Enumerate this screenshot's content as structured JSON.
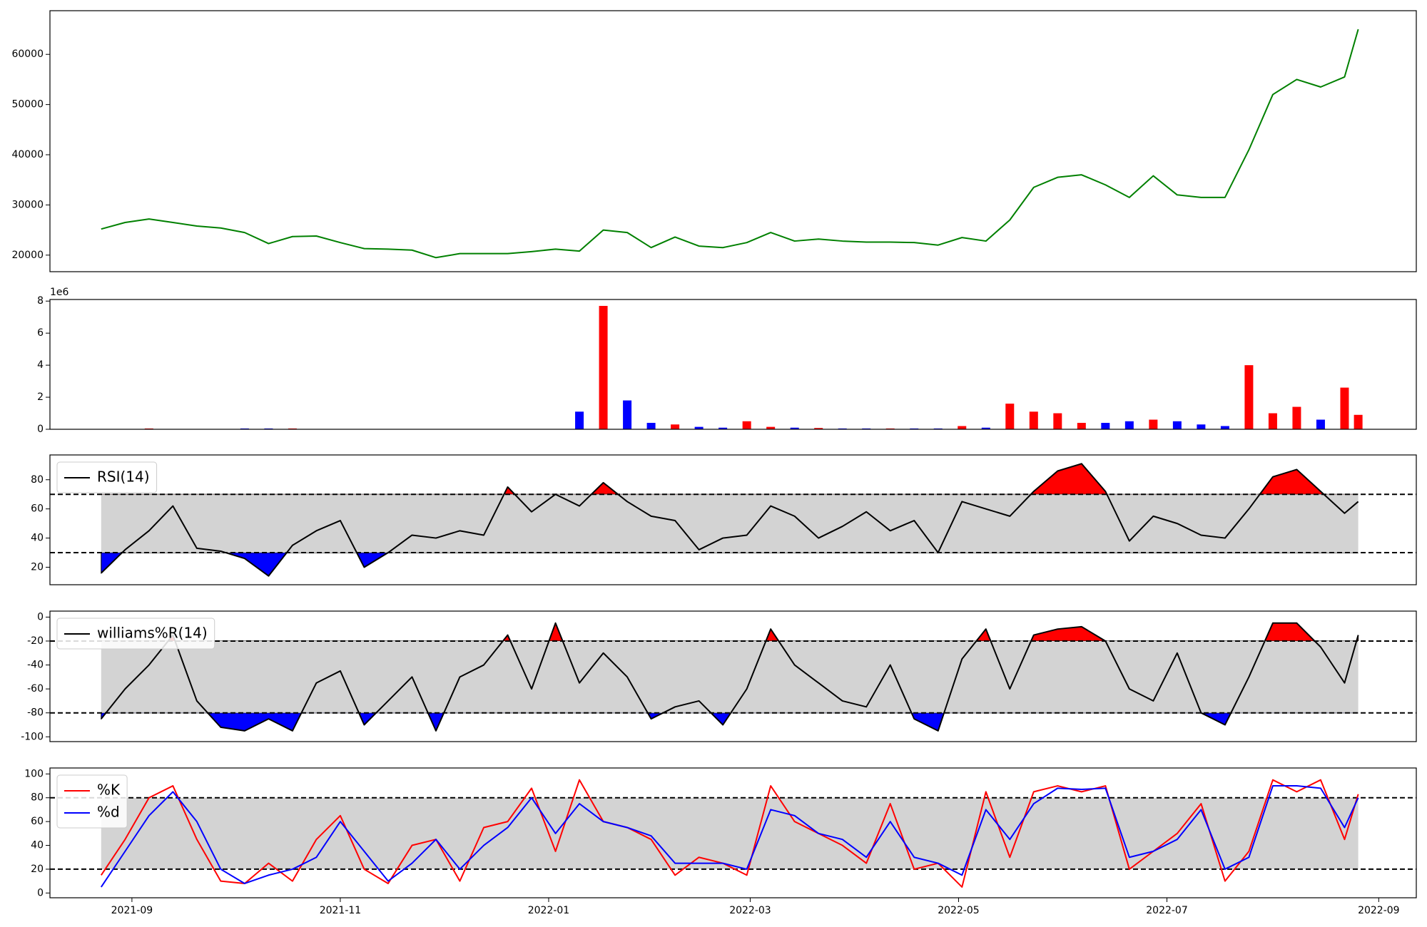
{
  "chart_data": [
    {
      "type": "line",
      "xlim": [
        "2021-08-08",
        "2022-09-12"
      ],
      "ylim": [
        16700,
        68700
      ],
      "yticks": [
        20000,
        30000,
        40000,
        50000,
        60000
      ],
      "x": [
        "2021-08-23",
        "2021-08-30",
        "2021-09-06",
        "2021-09-13",
        "2021-09-20",
        "2021-09-27",
        "2021-10-04",
        "2021-10-11",
        "2021-10-18",
        "2021-10-25",
        "2021-11-01",
        "2021-11-08",
        "2021-11-15",
        "2021-11-22",
        "2021-11-29",
        "2021-12-06",
        "2021-12-13",
        "2021-12-20",
        "2021-12-27",
        "2022-01-03",
        "2022-01-10",
        "2022-01-17",
        "2022-01-24",
        "2022-01-31",
        "2022-02-07",
        "2022-02-14",
        "2022-02-21",
        "2022-02-28",
        "2022-03-07",
        "2022-03-14",
        "2022-03-21",
        "2022-03-28",
        "2022-04-04",
        "2022-04-11",
        "2022-04-18",
        "2022-04-25",
        "2022-05-02",
        "2022-05-09",
        "2022-05-16",
        "2022-05-23",
        "2022-05-30",
        "2022-06-06",
        "2022-06-13",
        "2022-06-20",
        "2022-06-27",
        "2022-07-04",
        "2022-07-11",
        "2022-07-18",
        "2022-07-25",
        "2022-08-01",
        "2022-08-08",
        "2022-08-15",
        "2022-08-22",
        "2022-08-26"
      ],
      "series": [
        {
          "color": "#008000",
          "values": [
            25200,
            26500,
            27200,
            26500,
            25800,
            25400,
            24500,
            22300,
            23700,
            23800,
            22500,
            21300,
            21200,
            21000,
            19500,
            20300,
            20300,
            20300,
            20700,
            21200,
            20800,
            25000,
            24500,
            21500,
            23600,
            21800,
            21500,
            22500,
            24500,
            22800,
            23200,
            22800,
            22600,
            22600,
            22500,
            22000,
            23500,
            22800,
            27000,
            33500,
            35500,
            36000,
            34000,
            31500,
            35800,
            32000,
            31500,
            31500,
            41000,
            52000,
            55000,
            53500,
            55500,
            65000
          ]
        }
      ]
    },
    {
      "type": "bar",
      "xlim": [
        "2021-08-08",
        "2022-09-12"
      ],
      "ylim": [
        0,
        8.1
      ],
      "yticks": [
        0,
        2,
        4,
        6,
        8
      ],
      "offset_label": "1e6",
      "x": [
        "2021-08-23",
        "2021-08-30",
        "2021-09-06",
        "2021-09-13",
        "2021-09-20",
        "2021-09-27",
        "2021-10-04",
        "2021-10-11",
        "2021-10-18",
        "2021-10-25",
        "2021-11-01",
        "2021-11-08",
        "2021-11-15",
        "2021-11-22",
        "2021-11-29",
        "2021-12-06",
        "2021-12-13",
        "2021-12-20",
        "2021-12-27",
        "2022-01-03",
        "2022-01-10",
        "2022-01-17",
        "2022-01-24",
        "2022-01-31",
        "2022-02-07",
        "2022-02-14",
        "2022-02-21",
        "2022-02-28",
        "2022-03-07",
        "2022-03-14",
        "2022-03-21",
        "2022-03-28",
        "2022-04-04",
        "2022-04-11",
        "2022-04-18",
        "2022-04-25",
        "2022-05-02",
        "2022-05-09",
        "2022-05-16",
        "2022-05-23",
        "2022-05-30",
        "2022-06-06",
        "2022-06-13",
        "2022-06-20",
        "2022-06-27",
        "2022-07-04",
        "2022-07-11",
        "2022-07-18",
        "2022-07-25",
        "2022-08-01",
        "2022-08-08",
        "2022-08-15",
        "2022-08-22",
        "2022-08-26"
      ],
      "values": [
        0.02,
        0.02,
        0.05,
        0.02,
        0.02,
        0.02,
        0.05,
        0.05,
        0.05,
        0.02,
        0.02,
        0.02,
        0.02,
        0.02,
        0.02,
        0.02,
        0.02,
        0.02,
        0.02,
        0.02,
        1.1,
        7.7,
        1.8,
        0.4,
        0.3,
        0.15,
        0.1,
        0.5,
        0.15,
        0.1,
        0.08,
        0.05,
        0.05,
        0.05,
        0.05,
        0.05,
        0.2,
        0.1,
        1.6,
        1.1,
        1.0,
        0.4,
        0.4,
        0.5,
        0.6,
        0.5,
        0.3,
        0.2,
        4.0,
        1.0,
        1.4,
        0.6,
        2.6,
        0.9
      ],
      "colors": [
        "#ff0000",
        "#ff0000",
        "#ff0000",
        "#0000ff",
        "#0000ff",
        "#0000ff",
        "#0000ff",
        "#0000ff",
        "#ff0000",
        "#ff0000",
        "#0000ff",
        "#0000ff",
        "#0000ff",
        "#0000ff",
        "#0000ff",
        "#ff0000",
        "#ff0000",
        "#ff0000",
        "#ff0000",
        "#ff0000",
        "#0000ff",
        "#ff0000",
        "#0000ff",
        "#0000ff",
        "#ff0000",
        "#0000ff",
        "#0000ff",
        "#ff0000",
        "#ff0000",
        "#0000ff",
        "#ff0000",
        "#0000ff",
        "#0000ff",
        "#ff0000",
        "#0000ff",
        "#0000ff",
        "#ff0000",
        "#0000ff",
        "#ff0000",
        "#ff0000",
        "#ff0000",
        "#ff0000",
        "#0000ff",
        "#0000ff",
        "#ff0000",
        "#0000ff",
        "#0000ff",
        "#0000ff",
        "#ff0000",
        "#ff0000",
        "#ff0000",
        "#0000ff",
        "#ff0000",
        "#ff0000"
      ]
    },
    {
      "type": "line",
      "xlim": [
        "2021-08-08",
        "2022-09-12"
      ],
      "ylim": [
        8,
        97
      ],
      "yticks": [
        20,
        40,
        60,
        80
      ],
      "thresholds": [
        30,
        70
      ],
      "band_color": "#d3d3d3",
      "fill_colors": [
        "#0000ff",
        "#ff0000"
      ],
      "legend": "upper left",
      "x": [
        "2021-08-23",
        "2021-08-30",
        "2021-09-06",
        "2021-09-13",
        "2021-09-20",
        "2021-09-27",
        "2021-10-04",
        "2021-10-11",
        "2021-10-18",
        "2021-10-25",
        "2021-11-01",
        "2021-11-08",
        "2021-11-15",
        "2021-11-22",
        "2021-11-29",
        "2021-12-06",
        "2021-12-13",
        "2021-12-20",
        "2021-12-27",
        "2022-01-03",
        "2022-01-10",
        "2022-01-17",
        "2022-01-24",
        "2022-01-31",
        "2022-02-07",
        "2022-02-14",
        "2022-02-21",
        "2022-02-28",
        "2022-03-07",
        "2022-03-14",
        "2022-03-21",
        "2022-03-28",
        "2022-04-04",
        "2022-04-11",
        "2022-04-18",
        "2022-04-25",
        "2022-05-02",
        "2022-05-09",
        "2022-05-16",
        "2022-05-23",
        "2022-05-30",
        "2022-06-06",
        "2022-06-13",
        "2022-06-20",
        "2022-06-27",
        "2022-07-04",
        "2022-07-11",
        "2022-07-18",
        "2022-07-25",
        "2022-08-01",
        "2022-08-08",
        "2022-08-15",
        "2022-08-22",
        "2022-08-26"
      ],
      "series": [
        {
          "name": "RSI(14)",
          "color": "#000000",
          "values": [
            16,
            32,
            45,
            62,
            33,
            31,
            26,
            14,
            35,
            45,
            52,
            20,
            30,
            42,
            40,
            45,
            42,
            75,
            58,
            70,
            62,
            78,
            65,
            55,
            52,
            32,
            40,
            42,
            62,
            55,
            40,
            48,
            58,
            45,
            52,
            30,
            65,
            60,
            55,
            72,
            86,
            91,
            72,
            38,
            55,
            50,
            42,
            40,
            60,
            82,
            87,
            72,
            57,
            65
          ]
        }
      ]
    },
    {
      "type": "line",
      "xlim": [
        "2021-08-08",
        "2022-09-12"
      ],
      "ylim": [
        -104,
        5
      ],
      "yticks": [
        -100,
        -80,
        -60,
        -40,
        -20,
        0
      ],
      "thresholds": [
        -80,
        -20
      ],
      "band_color": "#d3d3d3",
      "fill_colors": [
        "#0000ff",
        "#ff0000"
      ],
      "legend": "upper left",
      "x": [
        "2021-08-23",
        "2021-08-30",
        "2021-09-06",
        "2021-09-13",
        "2021-09-20",
        "2021-09-27",
        "2021-10-04",
        "2021-10-11",
        "2021-10-18",
        "2021-10-25",
        "2021-11-01",
        "2021-11-08",
        "2021-11-15",
        "2021-11-22",
        "2021-11-29",
        "2021-12-06",
        "2021-12-13",
        "2021-12-20",
        "2021-12-27",
        "2022-01-03",
        "2022-01-10",
        "2022-01-17",
        "2022-01-24",
        "2022-01-31",
        "2022-02-07",
        "2022-02-14",
        "2022-02-21",
        "2022-02-28",
        "2022-03-07",
        "2022-03-14",
        "2022-03-21",
        "2022-03-28",
        "2022-04-04",
        "2022-04-11",
        "2022-04-18",
        "2022-04-25",
        "2022-05-02",
        "2022-05-09",
        "2022-05-16",
        "2022-05-23",
        "2022-05-30",
        "2022-06-06",
        "2022-06-13",
        "2022-06-20",
        "2022-06-27",
        "2022-07-04",
        "2022-07-11",
        "2022-07-18",
        "2022-07-25",
        "2022-08-01",
        "2022-08-08",
        "2022-08-15",
        "2022-08-22",
        "2022-08-26"
      ],
      "series": [
        {
          "name": "williams%R(14)",
          "color": "#000000",
          "values": [
            -85,
            -60,
            -40,
            -15,
            -70,
            -92,
            -95,
            -85,
            -95,
            -55,
            -45,
            -90,
            -70,
            -50,
            -95,
            -50,
            -40,
            -15,
            -60,
            -5,
            -55,
            -30,
            -50,
            -85,
            -75,
            -70,
            -90,
            -60,
            -10,
            -40,
            -55,
            -70,
            -75,
            -40,
            -85,
            -95,
            -35,
            -10,
            -60,
            -15,
            -10,
            -8,
            -20,
            -60,
            -70,
            -30,
            -80,
            -90,
            -50,
            -5,
            -5,
            -25,
            -55,
            -15
          ]
        }
      ]
    },
    {
      "type": "line",
      "xlim": [
        "2021-08-08",
        "2022-09-12"
      ],
      "ylim": [
        -4,
        105
      ],
      "yticks": [
        0,
        20,
        40,
        60,
        80,
        100
      ],
      "thresholds": [
        20,
        80
      ],
      "band_color": "#d3d3d3",
      "legend": "upper left",
      "xticks": [
        {
          "value": "2021-09-01",
          "label": "2021-09"
        },
        {
          "value": "2021-11-01",
          "label": "2021-11"
        },
        {
          "value": "2022-01-01",
          "label": "2022-01"
        },
        {
          "value": "2022-03-01",
          "label": "2022-03"
        },
        {
          "value": "2022-05-01",
          "label": "2022-05"
        },
        {
          "value": "2022-07-01",
          "label": "2022-07"
        },
        {
          "value": "2022-09-01",
          "label": "2022-09"
        }
      ],
      "x": [
        "2021-08-23",
        "2021-08-30",
        "2021-09-06",
        "2021-09-13",
        "2021-09-20",
        "2021-09-27",
        "2021-10-04",
        "2021-10-11",
        "2021-10-18",
        "2021-10-25",
        "2021-11-01",
        "2021-11-08",
        "2021-11-15",
        "2021-11-22",
        "2021-11-29",
        "2021-12-06",
        "2021-12-13",
        "2021-12-20",
        "2021-12-27",
        "2022-01-03",
        "2022-01-10",
        "2022-01-17",
        "2022-01-24",
        "2022-01-31",
        "2022-02-07",
        "2022-02-14",
        "2022-02-21",
        "2022-02-28",
        "2022-03-07",
        "2022-03-14",
        "2022-03-21",
        "2022-03-28",
        "2022-04-04",
        "2022-04-11",
        "2022-04-18",
        "2022-04-25",
        "2022-05-02",
        "2022-05-09",
        "2022-05-16",
        "2022-05-23",
        "2022-05-30",
        "2022-06-06",
        "2022-06-13",
        "2022-06-20",
        "2022-06-27",
        "2022-07-04",
        "2022-07-11",
        "2022-07-18",
        "2022-07-25",
        "2022-08-01",
        "2022-08-08",
        "2022-08-15",
        "2022-08-22",
        "2022-08-26"
      ],
      "series": [
        {
          "name": "%K",
          "color": "#ff0000",
          "values": [
            15,
            45,
            80,
            90,
            45,
            10,
            8,
            25,
            10,
            45,
            65,
            20,
            8,
            40,
            45,
            10,
            55,
            60,
            88,
            35,
            95,
            60,
            55,
            45,
            15,
            30,
            25,
            15,
            90,
            60,
            50,
            40,
            25,
            75,
            20,
            25,
            5,
            85,
            30,
            85,
            90,
            85,
            90,
            20,
            35,
            50,
            75,
            10,
            35,
            95,
            85,
            95,
            45,
            83
          ]
        },
        {
          "name": "%d",
          "color": "#0000ff",
          "values": [
            5,
            35,
            65,
            85,
            60,
            20,
            8,
            15,
            20,
            30,
            60,
            35,
            10,
            25,
            45,
            20,
            40,
            55,
            80,
            50,
            75,
            60,
            55,
            48,
            25,
            25,
            25,
            20,
            70,
            65,
            50,
            45,
            30,
            60,
            30,
            25,
            15,
            70,
            45,
            75,
            88,
            87,
            88,
            30,
            35,
            45,
            70,
            20,
            30,
            90,
            90,
            88,
            55,
            80
          ]
        }
      ]
    }
  ]
}
